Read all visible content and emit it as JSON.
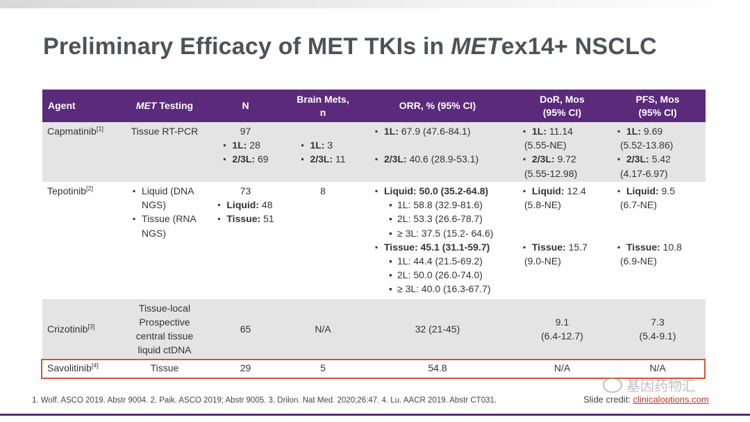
{
  "title": {
    "prefix": "Preliminary Efficacy of MET TKIs in ",
    "italic": "MET",
    "suffix": "ex14+ NSCLC"
  },
  "table": {
    "headers": {
      "agent": "Agent",
      "testing_italic": "MET",
      "testing_rest": " Testing",
      "n": "N",
      "brain_mets_1": "Brain Mets,",
      "brain_mets_2": "n",
      "orr": "ORR, % (95% CI)",
      "dor_1": "DoR, Mos",
      "dor_2": "(95% CI)",
      "pfs_1": "PFS, Mos",
      "pfs_2": "(95% CI)"
    },
    "capmatinib": {
      "agent": "Capmatinib",
      "ref": "[1]",
      "testing": "Tissue RT-PCR",
      "n_total": "97",
      "n_1l_label": "1L:",
      "n_1l": " 28",
      "n_23l_label": "2/3L:",
      "n_23l": " 69",
      "bm_1l_label": "1L:",
      "bm_1l": " 3",
      "bm_23l_label": "2/3L:",
      "bm_23l": " 11",
      "orr_1l_label": "1L:",
      "orr_1l": " 67.9 (47.6-84.1)",
      "orr_23l_label": "2/3L:",
      "orr_23l": " 40.6 (28.9-53.1)",
      "dor_1l_label": "1L:",
      "dor_1l": " 11.14",
      "dor_1l_ci": "(5.55-NE)",
      "dor_23l_label": "2/3L:",
      "dor_23l": " 9.72",
      "dor_23l_ci": "(5.55-12.98)",
      "pfs_1l_label": "1L:",
      "pfs_1l": " 9.69",
      "pfs_1l_ci": "(5.52-13.86)",
      "pfs_23l_label": "2/3L:",
      "pfs_23l": " 5.42",
      "pfs_23l_ci": "(4.17-6.97)"
    },
    "tepotinib": {
      "agent": "Tepotinib",
      "ref": "[2]",
      "testing_1a": "Liquid (DNA",
      "testing_1b": "NGS)",
      "testing_2a": "Tissue (RNA",
      "testing_2b": "NGS)",
      "n_total": "73",
      "n_liquid_label": "Liquid:",
      "n_liquid": " 48",
      "n_tissue_label": "Tissue:",
      "n_tissue": " 51",
      "brain_mets": "8",
      "orr_liquid": "Liquid: 50.0 (35.2-64.8)",
      "orr_liquid_1l": "1L: 58.8 (32.9-81.6)",
      "orr_liquid_2l": "2L: 53.3 (26.6-78.7)",
      "orr_liquid_3l": "≥ 3L: 37.5 (15.2- 64.6)",
      "orr_tissue": "Tissue: 45.1 (31.1-59.7)",
      "orr_tissue_1l": "1L: 44.4 (21.5-69.2)",
      "orr_tissue_2l": "2L: 50.0 (26.0-74.0)",
      "orr_tissue_3l": "≥ 3L: 40.0 (16.3-67.7)",
      "dor_liquid_label": "Liquid:",
      "dor_liquid": " 12.4",
      "dor_liquid_ci": "(5.8-NE)",
      "dor_tissue_label": "Tissue:",
      "dor_tissue": " 15.7",
      "dor_tissue_ci": "(9.0-NE)",
      "pfs_liquid_label": "Liquid:",
      "pfs_liquid": " 9.5",
      "pfs_liquid_ci": "(6.7-NE)",
      "pfs_tissue_label": "Tissue:",
      "pfs_tissue": " 10.8",
      "pfs_tissue_ci": "(6.9-NE)"
    },
    "crizotinib": {
      "agent": "Crizotinib",
      "ref": "[3]",
      "testing_1": "Tissue-local",
      "testing_2": "Prospective",
      "testing_3": "central tissue",
      "testing_4": "liquid ctDNA",
      "n": "65",
      "brain_mets": "N/A",
      "orr": "32 (21-45)",
      "dor": "9.1",
      "dor_ci": "(6.4-12.7)",
      "pfs": "7.3",
      "pfs_ci": "(5.4-9.1)"
    },
    "savolitinib": {
      "agent": "Savolitinib",
      "ref": "[4]",
      "testing": "Tissue",
      "n": "29",
      "brain_mets": "5",
      "orr": "54.8",
      "dor": "N/A",
      "pfs": "N/A"
    }
  },
  "footnote": "1. Wolf. ASCO 2019. Abstr 9004. 2. Paik. ASCO 2019; Abstr 9005. 3. Drilon. Nat Med. 2020;26:47. 4. Lu. AACR 2019. Abstr CT031.",
  "credit": {
    "label": "Slide credit: ",
    "link": "clinicaloptions.com"
  },
  "watermark": "基因药物汇",
  "colors": {
    "header": "#5b2a7a",
    "row_gray": "#e4e4e4",
    "highlight_border": "#d9532c",
    "title": "#4a5459"
  }
}
